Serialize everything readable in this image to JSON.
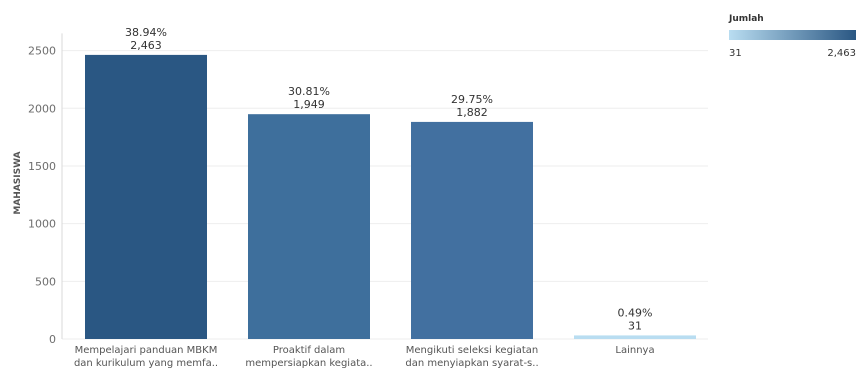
{
  "chart_data": {
    "type": "bar",
    "ylabel": "MAHASISWA",
    "ylim": [
      0,
      2650
    ],
    "yticks": [
      "0",
      "500",
      "1000",
      "1500",
      "2000",
      "2500"
    ],
    "categories": [
      [
        "Mempelajari panduan MBKM",
        "dan kurikulum yang memfa.."
      ],
      [
        "Proaktif dalam",
        "mempersiapkan kegiata.."
      ],
      [
        "Mengikuti seleksi kegiatan",
        "dan menyiapkan syarat-s.."
      ],
      [
        "Lainnya"
      ]
    ],
    "values": [
      2463,
      1949,
      1882,
      31
    ],
    "value_labels": [
      "2,463",
      "1,949",
      "1,882",
      "31"
    ],
    "percent_labels": [
      "38.94%",
      "30.81%",
      "29.75%",
      "0.49%"
    ],
    "bar_colors": [
      "#2a5783",
      "#3e6f9c",
      "#4270a0",
      "#b9ddf1"
    ],
    "grid": true,
    "legend": {
      "title": "Jumlah",
      "min_label": "31",
      "max_label": "2,463",
      "color_low": "#b9ddf1",
      "color_high": "#2a5783",
      "position": "top-right"
    }
  }
}
